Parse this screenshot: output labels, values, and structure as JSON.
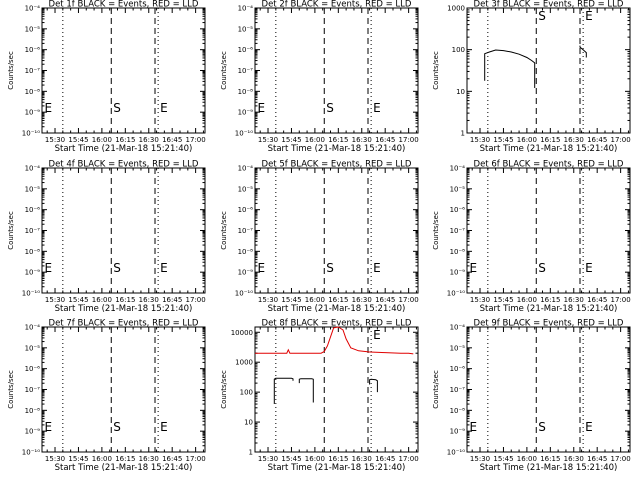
{
  "figure": {
    "background": "#ffffff",
    "events_color": "#000000",
    "lld_color": "#e00000"
  },
  "chart_data": [
    {
      "type": "line",
      "title": "Det 1f BLACK = Events, RED = LLD",
      "xlabel": "Start Time (21-Mar-18 15:21:40)",
      "ylabel": "Counts/sec",
      "xlim": [
        "15:21:40",
        "17:06:00"
      ],
      "x_tick_labels": [
        "15:30",
        "15:45",
        "16:00",
        "16:15",
        "16:30",
        "16:45",
        "17:00"
      ],
      "ylim": [
        1e-10,
        0.0001
      ],
      "yscale": "log",
      "y_tick_labels": [
        "10⁻¹⁰",
        "10⁻⁹",
        "10⁻⁸",
        "10⁻⁷",
        "10⁻⁶",
        "10⁻⁵",
        "10⁻⁴"
      ],
      "vertical_lines": [
        {
          "x": "15:35",
          "style": "dotted"
        },
        {
          "x": "16:06",
          "style": "dashed"
        },
        {
          "x": "16:34",
          "style": "dashed"
        },
        {
          "x": "16:36",
          "style": "dotted"
        }
      ],
      "markers": [
        {
          "text": "E",
          "x": "15:22",
          "y": 1e-09
        },
        {
          "text": "S",
          "x": "16:06",
          "y": 1e-09
        },
        {
          "text": "E",
          "x": "16:36",
          "y": 1e-09
        }
      ],
      "series": []
    },
    {
      "type": "line",
      "title": "Det 2f BLACK = Events, RED = LLD",
      "xlabel": "Start Time (21-Mar-18 15:21:40)",
      "ylabel": "Counts/sec",
      "xlim": [
        "15:21:40",
        "17:06:00"
      ],
      "x_tick_labels": [
        "15:30",
        "15:45",
        "16:00",
        "16:15",
        "16:30",
        "16:45",
        "17:00"
      ],
      "ylim": [
        1e-10,
        0.0001
      ],
      "yscale": "log",
      "y_tick_labels": [
        "10⁻¹⁰",
        "10⁻⁹",
        "10⁻⁸",
        "10⁻⁷",
        "10⁻⁶",
        "10⁻⁵",
        "10⁻⁴"
      ],
      "vertical_lines": [
        {
          "x": "15:35",
          "style": "dotted"
        },
        {
          "x": "16:06",
          "style": "dashed"
        },
        {
          "x": "16:34",
          "style": "dashed"
        },
        {
          "x": "16:36",
          "style": "dotted"
        }
      ],
      "markers": [
        {
          "text": "E",
          "x": "15:22",
          "y": 1e-09
        },
        {
          "text": "S",
          "x": "16:06",
          "y": 1e-09
        },
        {
          "text": "E",
          "x": "16:36",
          "y": 1e-09
        }
      ],
      "series": []
    },
    {
      "type": "line",
      "title": "Det 3f BLACK = Events, RED = LLD",
      "xlabel": "Start Time (21-Mar-18 15:21:40)",
      "ylabel": "Counts/sec",
      "xlim": [
        "15:21:40",
        "17:06:00"
      ],
      "x_tick_labels": [
        "15:30",
        "15:45",
        "16:00",
        "16:15",
        "16:30",
        "16:45",
        "17:00"
      ],
      "ylim": [
        1,
        1000
      ],
      "yscale": "log",
      "y_tick_labels": [
        "1",
        "10",
        "100",
        "1000"
      ],
      "vertical_lines": [
        {
          "x": "15:35",
          "style": "dotted"
        },
        {
          "x": "16:06",
          "style": "dashed"
        },
        {
          "x": "16:34",
          "style": "dashed"
        },
        {
          "x": "16:36",
          "style": "dotted"
        }
      ],
      "markers": [
        {
          "text": "S",
          "x": "16:06",
          "y": 700
        },
        {
          "text": "E",
          "x": "16:36",
          "y": 700
        }
      ],
      "series": [
        {
          "color": "#000000",
          "x": [
            "15:33",
            "15:33",
            "15:36",
            "15:40",
            "15:45",
            "15:50",
            "15:55",
            "16:00",
            "16:03",
            "16:05",
            "16:05"
          ],
          "y": [
            18,
            80,
            88,
            98,
            95,
            88,
            78,
            65,
            55,
            48,
            12
          ]
        },
        {
          "color": "#000000",
          "x": [
            "16:34",
            "16:34",
            "16:36",
            "16:38",
            "16:38"
          ],
          "y": [
            125,
            115,
            100,
            85,
            65
          ]
        }
      ]
    },
    {
      "type": "line",
      "title": "Det 4f BLACK = Events, RED = LLD",
      "xlabel": "Start Time (21-Mar-18 15:21:40)",
      "ylabel": "Counts/sec",
      "xlim": [
        "15:21:40",
        "17:06:00"
      ],
      "x_tick_labels": [
        "15:30",
        "15:45",
        "16:00",
        "16:15",
        "16:30",
        "16:45",
        "17:00"
      ],
      "ylim": [
        1e-10,
        0.0001
      ],
      "yscale": "log",
      "y_tick_labels": [
        "10⁻¹⁰",
        "10⁻⁹",
        "10⁻⁸",
        "10⁻⁷",
        "10⁻⁶",
        "10⁻⁵",
        "10⁻⁴"
      ],
      "vertical_lines": [
        {
          "x": "15:35",
          "style": "dotted"
        },
        {
          "x": "16:06",
          "style": "dashed"
        },
        {
          "x": "16:34",
          "style": "dashed"
        },
        {
          "x": "16:36",
          "style": "dotted"
        }
      ],
      "markers": [
        {
          "text": "E",
          "x": "15:22",
          "y": 1e-09
        },
        {
          "text": "S",
          "x": "16:06",
          "y": 1e-09
        },
        {
          "text": "E",
          "x": "16:36",
          "y": 1e-09
        }
      ],
      "series": []
    },
    {
      "type": "line",
      "title": "Det 5f BLACK = Events, RED = LLD",
      "xlabel": "Start Time (21-Mar-18 15:21:40)",
      "ylabel": "Counts/sec",
      "xlim": [
        "15:21:40",
        "17:06:00"
      ],
      "x_tick_labels": [
        "15:30",
        "15:45",
        "16:00",
        "16:15",
        "16:30",
        "16:45",
        "17:00"
      ],
      "ylim": [
        1e-10,
        0.0001
      ],
      "yscale": "log",
      "y_tick_labels": [
        "10⁻¹⁰",
        "10⁻⁹",
        "10⁻⁸",
        "10⁻⁷",
        "10⁻⁶",
        "10⁻⁵",
        "10⁻⁴"
      ],
      "vertical_lines": [
        {
          "x": "15:35",
          "style": "dotted"
        },
        {
          "x": "16:06",
          "style": "dashed"
        },
        {
          "x": "16:34",
          "style": "dashed"
        },
        {
          "x": "16:36",
          "style": "dotted"
        }
      ],
      "markers": [
        {
          "text": "E",
          "x": "15:22",
          "y": 1e-09
        },
        {
          "text": "S",
          "x": "16:06",
          "y": 1e-09
        },
        {
          "text": "E",
          "x": "16:36",
          "y": 1e-09
        }
      ],
      "series": []
    },
    {
      "type": "line",
      "title": "Det 6f BLACK = Events, RED = LLD",
      "xlabel": "Start Time (21-Mar-18 15:21:40)",
      "ylabel": "Counts/sec",
      "xlim": [
        "15:21:40",
        "17:06:00"
      ],
      "x_tick_labels": [
        "15:30",
        "15:45",
        "16:00",
        "16:15",
        "16:30",
        "16:45",
        "17:00"
      ],
      "ylim": [
        1e-10,
        0.0001
      ],
      "yscale": "log",
      "y_tick_labels": [
        "10⁻¹⁰",
        "10⁻⁹",
        "10⁻⁸",
        "10⁻⁷",
        "10⁻⁶",
        "10⁻⁵",
        "10⁻⁴"
      ],
      "vertical_lines": [
        {
          "x": "15:35",
          "style": "dotted"
        },
        {
          "x": "16:06",
          "style": "dashed"
        },
        {
          "x": "16:34",
          "style": "dashed"
        },
        {
          "x": "16:36",
          "style": "dotted"
        }
      ],
      "markers": [
        {
          "text": "E",
          "x": "15:22",
          "y": 1e-09
        },
        {
          "text": "S",
          "x": "16:06",
          "y": 1e-09
        },
        {
          "text": "E",
          "x": "16:36",
          "y": 1e-09
        }
      ],
      "series": []
    },
    {
      "type": "line",
      "title": "Det 7f BLACK = Events, RED = LLD",
      "xlabel": "Start Time (21-Mar-18 15:21:40)",
      "ylabel": "Counts/sec",
      "xlim": [
        "15:21:40",
        "17:06:00"
      ],
      "x_tick_labels": [
        "15:30",
        "15:45",
        "16:00",
        "16:15",
        "16:30",
        "16:45",
        "17:00"
      ],
      "ylim": [
        1e-10,
        0.0001
      ],
      "yscale": "log",
      "y_tick_labels": [
        "10⁻¹⁰",
        "10⁻⁹",
        "10⁻⁸",
        "10⁻⁷",
        "10⁻⁶",
        "10⁻⁵",
        "10⁻⁴"
      ],
      "vertical_lines": [
        {
          "x": "15:35",
          "style": "dotted"
        },
        {
          "x": "16:06",
          "style": "dashed"
        },
        {
          "x": "16:34",
          "style": "dashed"
        },
        {
          "x": "16:36",
          "style": "dotted"
        }
      ],
      "markers": [
        {
          "text": "E",
          "x": "15:22",
          "y": 1e-09
        },
        {
          "text": "S",
          "x": "16:06",
          "y": 1e-09
        },
        {
          "text": "E",
          "x": "16:36",
          "y": 1e-09
        }
      ],
      "series": []
    },
    {
      "type": "line",
      "title": "Det 8f BLACK = Events, RED = LLD",
      "xlabel": "Start Time (21-Mar-18 15:21:40)",
      "ylabel": "Counts/sec",
      "xlim": [
        "15:21:40",
        "17:06:00"
      ],
      "x_tick_labels": [
        "15:30",
        "15:45",
        "16:00",
        "16:15",
        "16:30",
        "16:45",
        "17:00"
      ],
      "ylim": [
        1,
        15000
      ],
      "yscale": "log",
      "y_tick_labels": [
        "1",
        "10",
        "100",
        "1000",
        "10000"
      ],
      "vertical_lines": [
        {
          "x": "15:35",
          "style": "dotted"
        },
        {
          "x": "16:06",
          "style": "dashed"
        },
        {
          "x": "16:34",
          "style": "dashed"
        },
        {
          "x": "16:36",
          "style": "dotted"
        }
      ],
      "markers": [
        {
          "text": "E",
          "x": "16:36",
          "y": 7000
        }
      ],
      "series": [
        {
          "color": "#e00000",
          "x": [
            "15:21:40",
            "15:30",
            "15:40",
            "15:42",
            "15:43",
            "15:44",
            "15:46",
            "15:55",
            "16:00",
            "16:04",
            "16:06",
            "16:08",
            "16:10",
            "16:12",
            "16:15",
            "16:18",
            "16:20",
            "16:23",
            "16:28",
            "16:35",
            "16:45",
            "16:55",
            "17:00",
            "17:03"
          ],
          "y": [
            2000,
            2000,
            2000,
            2000,
            2600,
            2000,
            2000,
            2000,
            2000,
            2000,
            2300,
            3500,
            7000,
            14000,
            16000,
            12000,
            6000,
            3000,
            2400,
            2200,
            2100,
            2000,
            2000,
            1900
          ]
        },
        {
          "color": "#000000",
          "x": [
            "15:34",
            "15:34",
            "15:35",
            "15:45",
            "15:46",
            "15:46"
          ],
          "y": [
            40,
            270,
            290,
            290,
            280,
            240
          ]
        },
        {
          "color": "#000000",
          "x": [
            "15:50",
            "15:50",
            "15:51",
            "15:58",
            "15:59",
            "15:59"
          ],
          "y": [
            200,
            270,
            280,
            280,
            270,
            45
          ]
        },
        {
          "color": "#000000",
          "x": [
            "16:35",
            "16:35",
            "16:36",
            "16:39",
            "16:40",
            "16:40"
          ],
          "y": [
            180,
            260,
            270,
            260,
            240,
            100
          ]
        }
      ]
    },
    {
      "type": "line",
      "title": "Det 9f BLACK = Events, RED = LLD",
      "xlabel": "Start Time (21-Mar-18 15:21:40)",
      "ylabel": "Counts/sec",
      "xlim": [
        "15:21:40",
        "17:06:00"
      ],
      "x_tick_labels": [
        "15:30",
        "15:45",
        "16:00",
        "16:15",
        "16:30",
        "16:45",
        "17:00"
      ],
      "ylim": [
        1e-10,
        0.0001
      ],
      "yscale": "log",
      "y_tick_labels": [
        "10⁻¹⁰",
        "10⁻⁹",
        "10⁻⁸",
        "10⁻⁷",
        "10⁻⁶",
        "10⁻⁵",
        "10⁻⁴"
      ],
      "vertical_lines": [
        {
          "x": "15:35",
          "style": "dotted"
        },
        {
          "x": "16:06",
          "style": "dashed"
        },
        {
          "x": "16:34",
          "style": "dashed"
        },
        {
          "x": "16:36",
          "style": "dotted"
        }
      ],
      "markers": [
        {
          "text": "E",
          "x": "15:22",
          "y": 1e-09
        },
        {
          "text": "S",
          "x": "16:06",
          "y": 1e-09
        },
        {
          "text": "E",
          "x": "16:36",
          "y": 1e-09
        }
      ],
      "series": []
    }
  ]
}
